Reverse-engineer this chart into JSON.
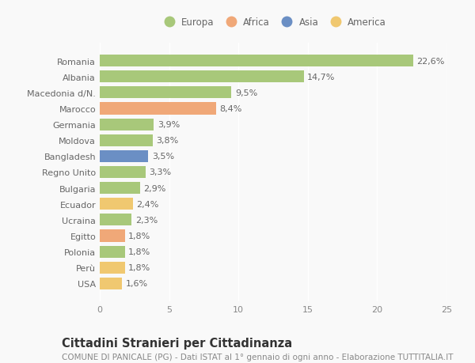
{
  "categories": [
    "Romania",
    "Albania",
    "Macedonia d/N.",
    "Marocco",
    "Germania",
    "Moldova",
    "Bangladesh",
    "Regno Unito",
    "Bulgaria",
    "Ecuador",
    "Ucraina",
    "Egitto",
    "Polonia",
    "Perù",
    "USA"
  ],
  "values": [
    22.6,
    14.7,
    9.5,
    8.4,
    3.9,
    3.8,
    3.5,
    3.3,
    2.9,
    2.4,
    2.3,
    1.8,
    1.8,
    1.8,
    1.6
  ],
  "labels": [
    "22,6%",
    "14,7%",
    "9,5%",
    "8,4%",
    "3,9%",
    "3,8%",
    "3,5%",
    "3,3%",
    "2,9%",
    "2,4%",
    "2,3%",
    "1,8%",
    "1,8%",
    "1,8%",
    "1,6%"
  ],
  "continents": [
    "Europa",
    "Europa",
    "Europa",
    "Africa",
    "Europa",
    "Europa",
    "Asia",
    "Europa",
    "Europa",
    "America",
    "Europa",
    "Africa",
    "Europa",
    "America",
    "America"
  ],
  "colors": {
    "Europa": "#a8c87a",
    "Africa": "#f0a878",
    "Asia": "#6b8fc4",
    "America": "#f0c870"
  },
  "xlim": [
    0,
    25
  ],
  "title": "Cittadini Stranieri per Cittadinanza",
  "subtitle": "COMUNE DI PANICALE (PG) - Dati ISTAT al 1° gennaio di ogni anno - Elaborazione TUTTITALIA.IT",
  "background_color": "#f9f9f9",
  "bar_height": 0.75,
  "label_fontsize": 8.0,
  "tick_fontsize": 8.0,
  "title_fontsize": 10.5,
  "subtitle_fontsize": 7.5,
  "legend_order": [
    "Europa",
    "Africa",
    "Asia",
    "America"
  ]
}
